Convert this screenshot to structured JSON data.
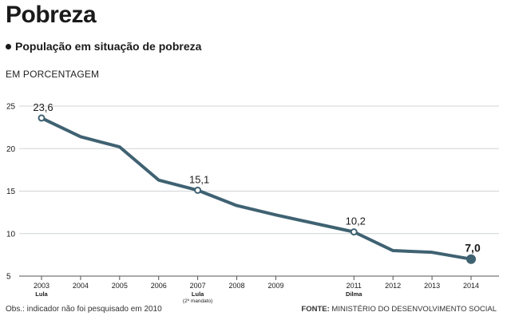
{
  "header": {
    "title": "Pobreza",
    "subtitle": "População em situação de pobreza",
    "unit": "EM PORCENTAGEM"
  },
  "footer": {
    "note": "Obs.: indicador não foi pesquisado em 2010",
    "source_label": "FONTE:",
    "source_text": "MINISTÉRIO DO DESENVOLVIMENTO SOCIAL"
  },
  "colors": {
    "line": "#3f6272",
    "grid": "#cfd3d6",
    "text": "#1a1a1a"
  },
  "chart_data": {
    "type": "line",
    "title": "Pobreza",
    "subtitle": "População em situação de pobreza",
    "ylabel": "EM PORCENTAGEM",
    "xlim": [
      2003,
      2014
    ],
    "ylim": [
      5,
      25
    ],
    "yticks": [
      "5",
      "10",
      "15",
      "20",
      "25"
    ],
    "ytick_values": [
      5,
      10,
      15,
      20,
      25
    ],
    "xticks": [
      "2003",
      "2004",
      "2005",
      "2006",
      "2007",
      "2008",
      "2009",
      "2011",
      "2012",
      "2013",
      "2014"
    ],
    "xtick_values": [
      2003,
      2004,
      2005,
      2006,
      2007,
      2008,
      2009,
      2011,
      2012,
      2013,
      2014
    ],
    "grid": "horizontal",
    "series": [
      {
        "x": [
          2003,
          2004,
          2005,
          2006,
          2007,
          2008,
          2009,
          2011,
          2012,
          2013,
          2014
        ],
        "values": [
          23.6,
          21.4,
          20.2,
          16.3,
          15.1,
          13.3,
          12.2,
          10.2,
          8.0,
          7.8,
          7.0
        ]
      }
    ],
    "data_labels": [
      {
        "x": 2003,
        "y": 23.6,
        "text": "23,6"
      },
      {
        "x": 2007,
        "y": 15.1,
        "text": "15,1"
      },
      {
        "x": 2011,
        "y": 10.2,
        "text": "10,2"
      },
      {
        "x": 2014,
        "y": 7.0,
        "text": "7,0",
        "bold": true
      }
    ],
    "annotations": [
      {
        "x": 2003,
        "lines": [
          "Lula"
        ]
      },
      {
        "x": 2007,
        "lines": [
          "Lula",
          "(2º mandato)"
        ]
      },
      {
        "x": 2011,
        "lines": [
          "Dilma"
        ]
      }
    ]
  }
}
